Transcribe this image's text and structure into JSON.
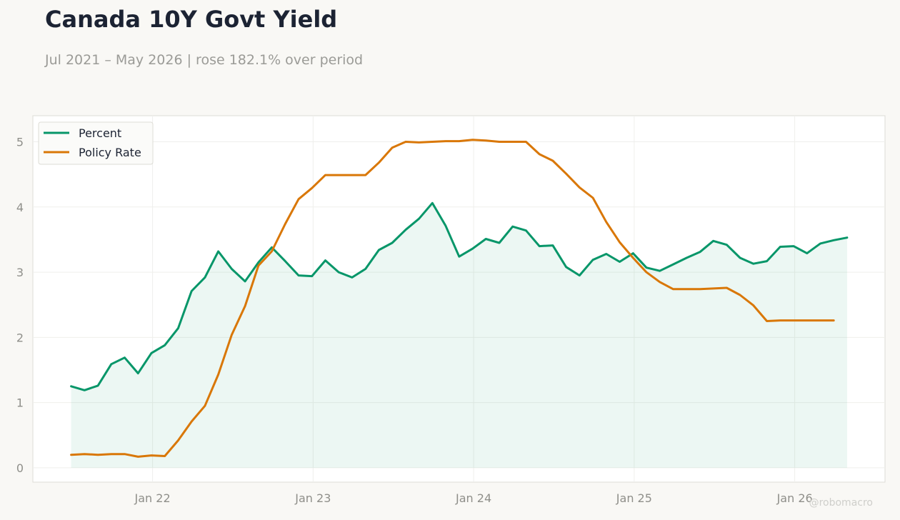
{
  "title": "Canada 10Y Govt Yield",
  "subtitle": "Jul 2021 – May 2026 | rose 182.1% over period",
  "watermark": "@robomacro",
  "chart_data": {
    "type": "line",
    "x_start": "2021-07",
    "x_tick_labels": [
      "Jan 22",
      "Jan 23",
      "Jan 24",
      "Jan 25",
      "Jan 26"
    ],
    "y_ticks": [
      0,
      1,
      2,
      3,
      4,
      5
    ],
    "ylim": [
      -0.22,
      5.4
    ],
    "grid": true,
    "legend_position": "top-left",
    "series": [
      {
        "name": "Percent",
        "color": "#079669",
        "fill": true,
        "values": [
          1.25,
          1.19,
          1.26,
          1.59,
          1.69,
          1.45,
          1.76,
          1.88,
          2.14,
          2.71,
          2.92,
          3.32,
          3.05,
          2.86,
          3.15,
          3.38,
          3.17,
          2.95,
          2.94,
          3.18,
          3.0,
          2.92,
          3.05,
          3.34,
          3.45,
          3.65,
          3.82,
          4.06,
          3.71,
          3.24,
          3.36,
          3.51,
          3.45,
          3.7,
          3.64,
          3.4,
          3.41,
          3.08,
          2.95,
          3.19,
          3.28,
          3.16,
          3.29,
          3.07,
          3.02,
          3.12,
          3.22,
          3.31,
          3.48,
          3.42,
          3.22,
          3.13,
          3.17,
          3.39,
          3.4,
          3.29,
          3.44,
          3.49,
          3.53
        ]
      },
      {
        "name": "Policy Rate",
        "color": "#d97707",
        "fill": false,
        "values": [
          0.2,
          0.21,
          0.2,
          0.21,
          0.21,
          0.17,
          0.19,
          0.18,
          0.42,
          0.71,
          0.95,
          1.43,
          2.04,
          2.48,
          3.1,
          3.32,
          3.74,
          4.12,
          4.29,
          4.49,
          4.49,
          4.49,
          4.49,
          4.68,
          4.91,
          5.0,
          4.99,
          5.0,
          5.01,
          5.01,
          5.03,
          5.02,
          5.0,
          5.0,
          5.0,
          4.81,
          4.71,
          4.51,
          4.3,
          4.14,
          3.77,
          3.46,
          3.22,
          3.0,
          2.85,
          2.74,
          2.74,
          2.74,
          2.75,
          2.76,
          2.65,
          2.49,
          2.25,
          2.26,
          2.26,
          2.26,
          2.26,
          2.26
        ]
      }
    ]
  }
}
